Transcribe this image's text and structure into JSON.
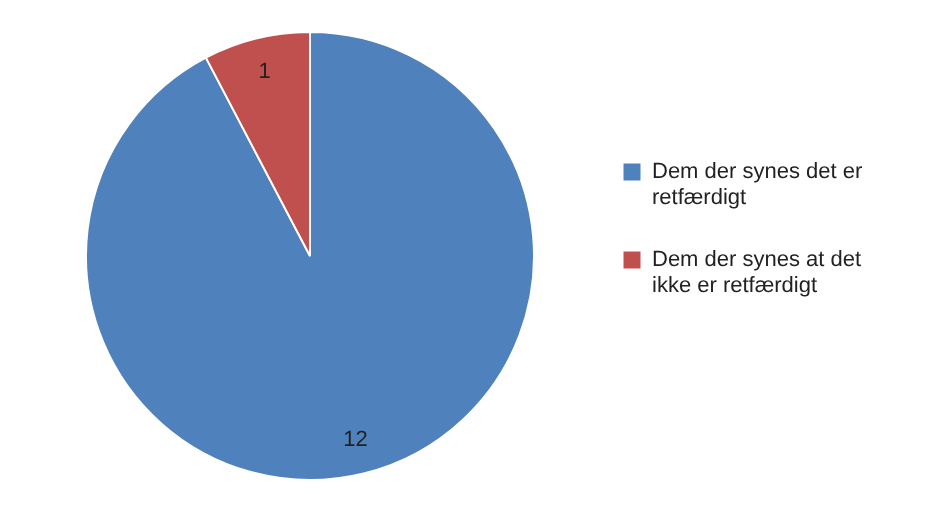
{
  "chart_data": {
    "type": "pie",
    "categories": [
      "Dem der synes det er retfærdigt",
      "Dem der synes at det ikke er retfærdigt"
    ],
    "values": [
      12,
      1
    ],
    "colors": [
      "#4f81bd",
      "#c0504d"
    ],
    "data_labels": true,
    "legend": "right"
  }
}
